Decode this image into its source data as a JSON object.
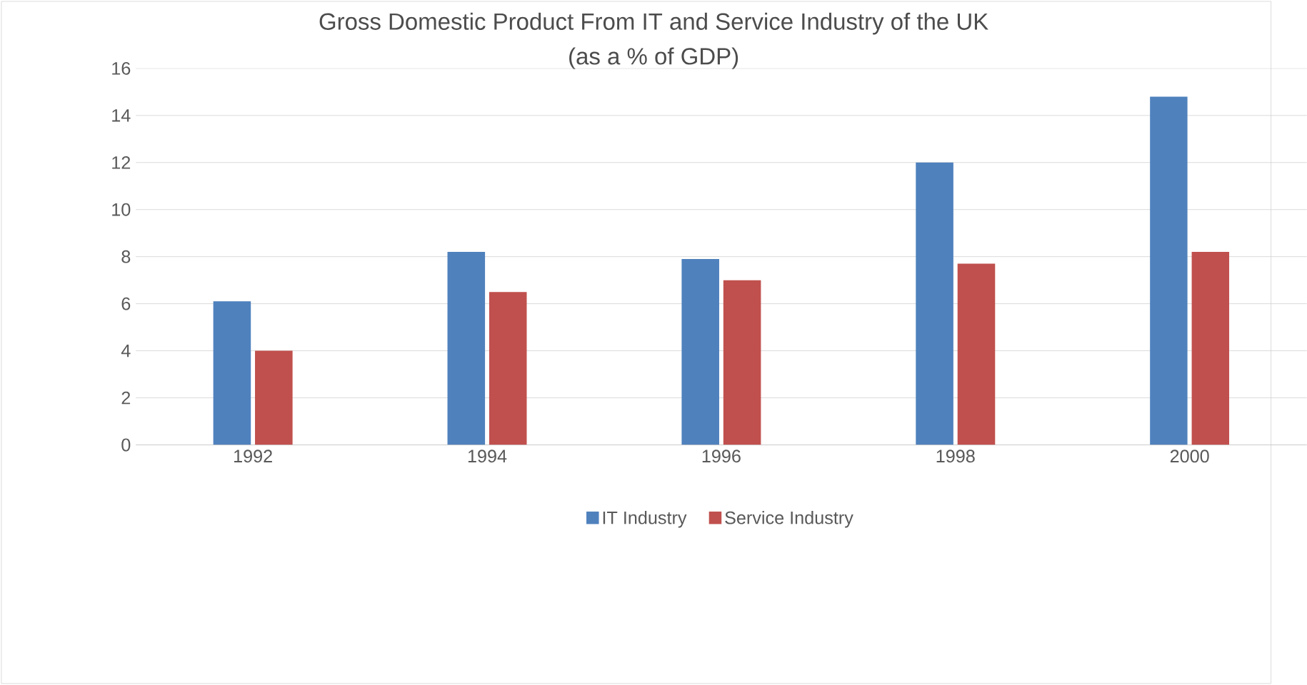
{
  "chart_data": {
    "type": "bar",
    "title": "Gross Domestic Product From IT and Service Industry of the UK",
    "subtitle": "(as a % of GDP)",
    "categories": [
      "1992",
      "1994",
      "1996",
      "1998",
      "2000"
    ],
    "series": [
      {
        "name": "IT Industry",
        "color": "#4f81bd",
        "values": [
          6.1,
          8.2,
          7.9,
          12.0,
          14.8
        ]
      },
      {
        "name": "Service Industry",
        "color": "#c0504d",
        "values": [
          4.0,
          6.5,
          7.0,
          7.7,
          8.2
        ]
      }
    ],
    "ylim": [
      0,
      16
    ],
    "yticks": [
      0,
      2,
      4,
      6,
      8,
      10,
      12,
      14,
      16
    ],
    "grid": "y",
    "legend": "bottom"
  }
}
